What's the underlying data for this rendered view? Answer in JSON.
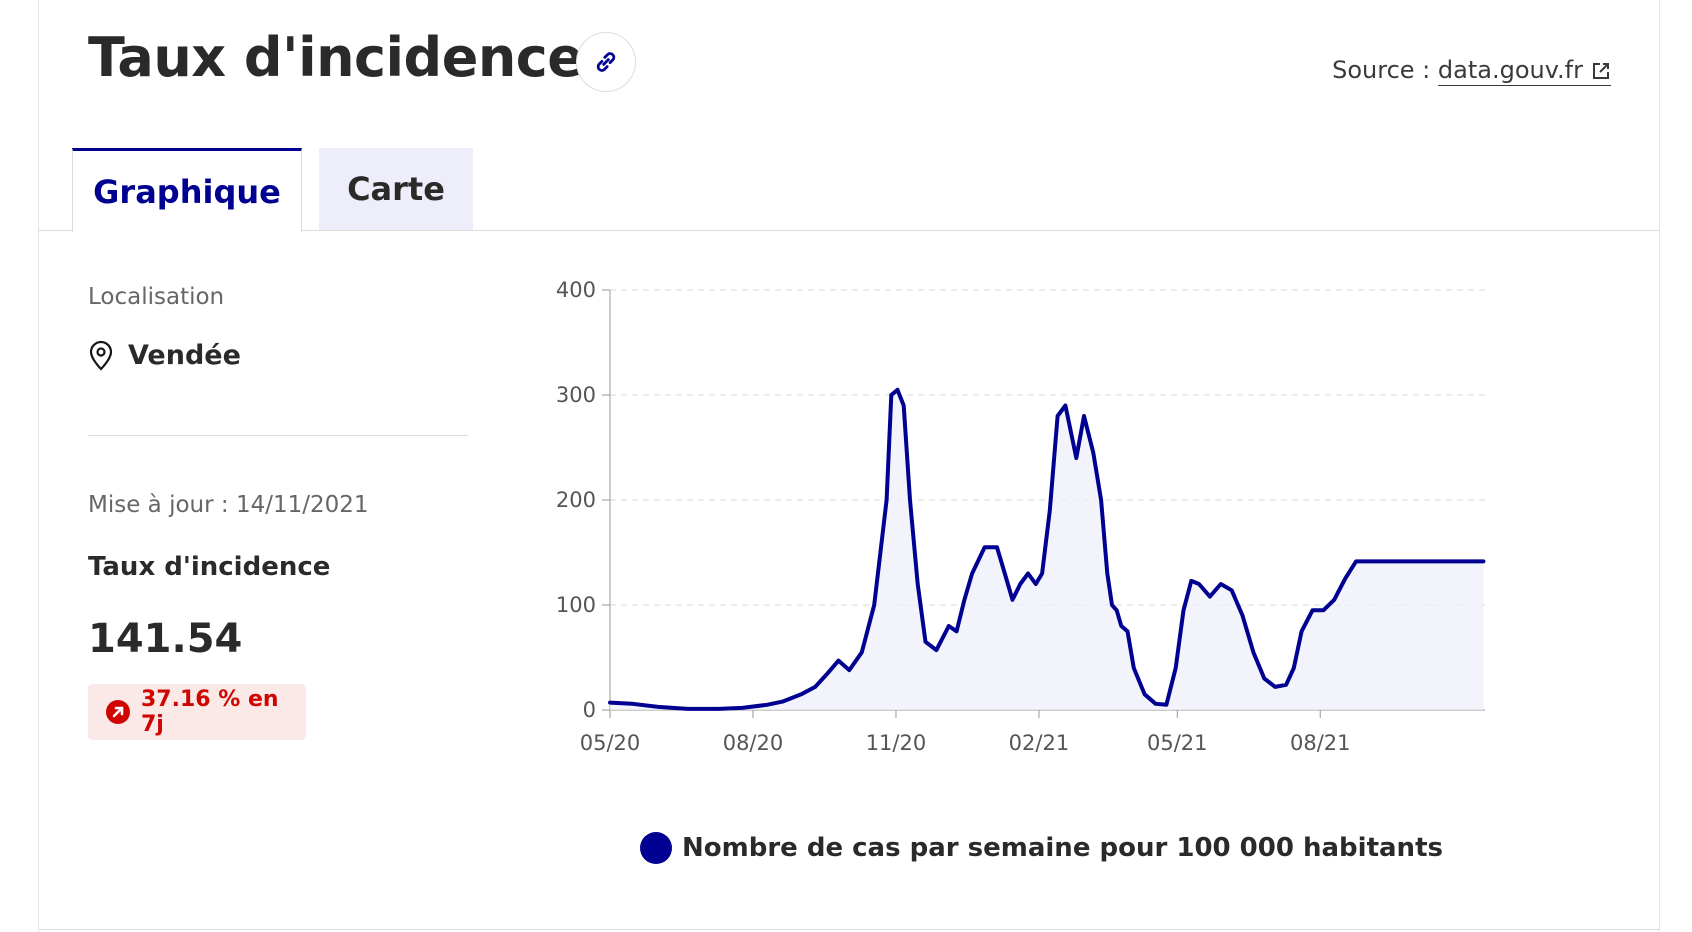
{
  "header": {
    "title": "Taux d'incidence",
    "source_label": "Source :",
    "source_link": "data.gouv.fr"
  },
  "tabs": [
    {
      "label": "Graphique",
      "active": true
    },
    {
      "label": "Carte",
      "active": false
    }
  ],
  "sidebar": {
    "location_label": "Localisation",
    "location_value": "Vendée",
    "update": "Mise à jour : 14/11/2021",
    "metric_label": "Taux d'incidence",
    "metric_value": "141.54",
    "trend": "37.16 % en 7j"
  },
  "legend": {
    "label": "Nombre de cas par semaine pour 100 000 habitants"
  },
  "colors": {
    "accent": "#000091",
    "trend_up": "#ce0500",
    "trend_bg": "#fbe9e7",
    "tab_inactive_bg": "#eeeefa"
  },
  "icons": [
    "link-icon",
    "external-link-icon",
    "map-pin-icon",
    "arrow-up-right-icon"
  ],
  "chart_data": {
    "type": "area",
    "x_ticks": [
      "05/20",
      "08/20",
      "11/20",
      "02/21",
      "05/21",
      "08/21"
    ],
    "ylim": [
      0,
      400
    ],
    "y_ticks": [
      0,
      100,
      200,
      300,
      400
    ],
    "grid": true,
    "series": [
      {
        "name": "Nombre de cas par semaine pour 100 000 habitants",
        "color": "#000091",
        "x": [
          "2020-05-01",
          "2020-05-15",
          "2020-06-01",
          "2020-06-20",
          "2020-07-10",
          "2020-07-25",
          "2020-08-10",
          "2020-08-20",
          "2020-09-01",
          "2020-09-10",
          "2020-09-18",
          "2020-09-25",
          "2020-10-02",
          "2020-10-10",
          "2020-10-18",
          "2020-10-22",
          "2020-10-26",
          "2020-10-29",
          "2020-11-02",
          "2020-11-06",
          "2020-11-10",
          "2020-11-15",
          "2020-11-20",
          "2020-11-27",
          "2020-12-05",
          "2020-12-10",
          "2020-12-15",
          "2020-12-20",
          "2020-12-28",
          "2021-01-05",
          "2021-01-10",
          "2021-01-15",
          "2021-01-20",
          "2021-01-25",
          "2021-01-30",
          "2021-02-03",
          "2021-02-08",
          "2021-02-13",
          "2021-02-18",
          "2021-02-25",
          "2021-03-02",
          "2021-03-08",
          "2021-03-13",
          "2021-03-17",
          "2021-03-20",
          "2021-03-23",
          "2021-03-26",
          "2021-03-30",
          "2021-04-03",
          "2021-04-10",
          "2021-04-17",
          "2021-04-24",
          "2021-04-30",
          "2021-05-05",
          "2021-05-10",
          "2021-05-15",
          "2021-05-22",
          "2021-05-29",
          "2021-06-05",
          "2021-06-12",
          "2021-06-19",
          "2021-06-26",
          "2021-07-03",
          "2021-07-10",
          "2021-07-15",
          "2021-07-20",
          "2021-07-27",
          "2021-08-03",
          "2021-08-10",
          "2021-08-17",
          "2021-08-24",
          "2021-08-31",
          "2021-09-07",
          "2021-09-14",
          "2021-09-21",
          "2021-09-28",
          "2021-10-05",
          "2021-10-12",
          "2021-10-19",
          "2021-10-26",
          "2021-11-02",
          "2021-11-08",
          "2021-11-10",
          "2021-11-14"
        ],
        "y": [
          7,
          6,
          3,
          1,
          1,
          2,
          5,
          8,
          15,
          22,
          35,
          47,
          38,
          55,
          100,
          150,
          200,
          300,
          305,
          290,
          200,
          120,
          65,
          57,
          80,
          75,
          105,
          130,
          155,
          155,
          130,
          105,
          120,
          130,
          120,
          130,
          190,
          280,
          290,
          240,
          280,
          245,
          200,
          130,
          100,
          95,
          80,
          75,
          40,
          15,
          6,
          5,
          40,
          95,
          123,
          120,
          108,
          120,
          114,
          90,
          55,
          30,
          22,
          24,
          40,
          75,
          95,
          95,
          105,
          125,
          141.54,
          141.54,
          141.54,
          141.54,
          141.54,
          141.54,
          141.54,
          141.54,
          141.54,
          141.54,
          141.54,
          141.54,
          141.54,
          141.54
        ]
      }
    ]
  }
}
